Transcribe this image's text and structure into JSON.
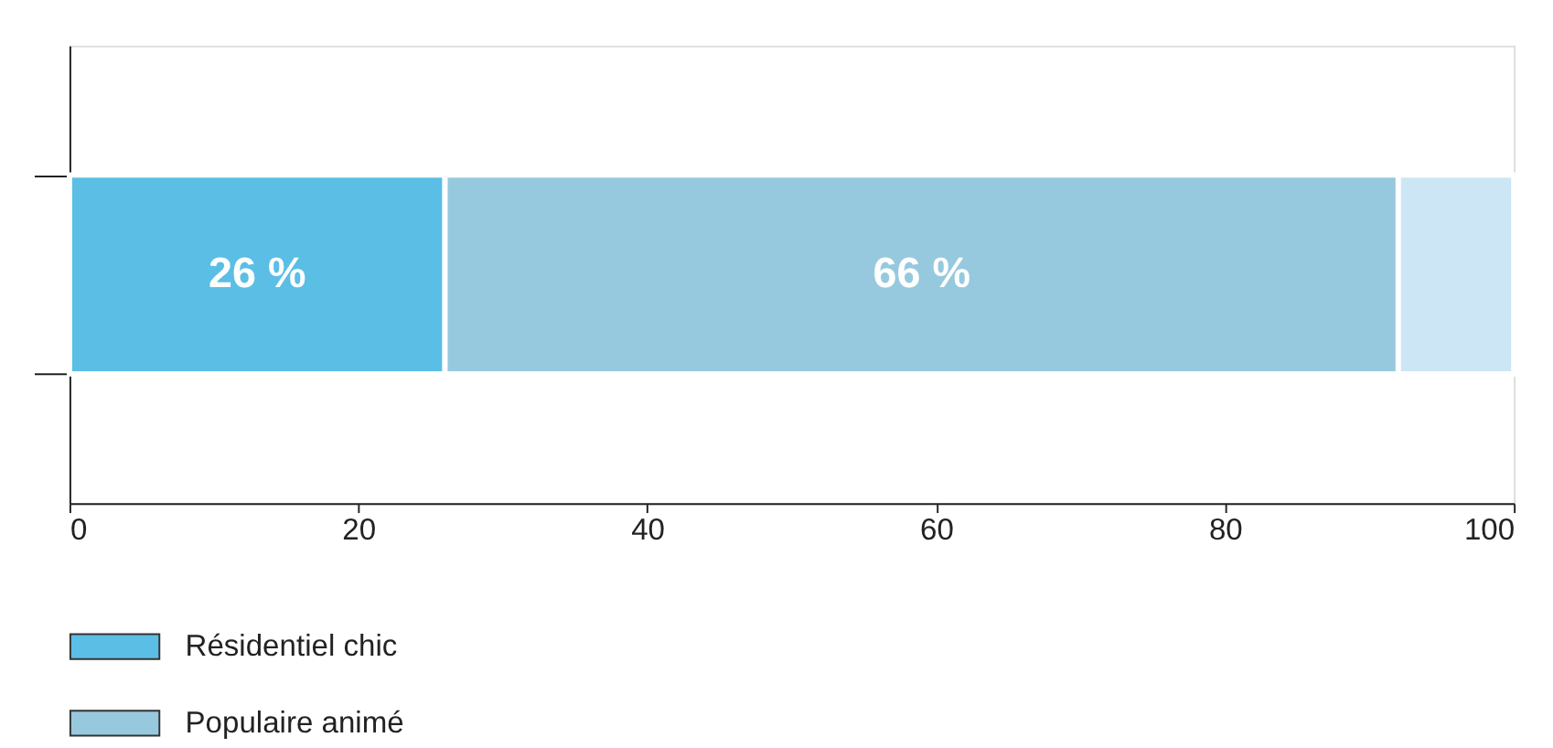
{
  "chart_data": {
    "type": "bar",
    "orientation": "horizontal",
    "stacked": true,
    "categories": [
      null
    ],
    "series": [
      {
        "name": "Résidentiel chic",
        "color": "#5bbee5",
        "values": [
          26
        ],
        "value_labels": [
          "26 %"
        ]
      },
      {
        "name": "Populaire animé",
        "color": "#96c9de",
        "values": [
          66
        ],
        "value_labels": [
          "66 %"
        ]
      },
      {
        "color": "#cde6f5",
        "values": [
          8
        ],
        "value_labels": [
          null
        ]
      }
    ],
    "xlim": [
      0,
      100
    ],
    "xticks": [
      0,
      20,
      40,
      60,
      80,
      100
    ],
    "grid": false,
    "legend": "bottom left"
  }
}
